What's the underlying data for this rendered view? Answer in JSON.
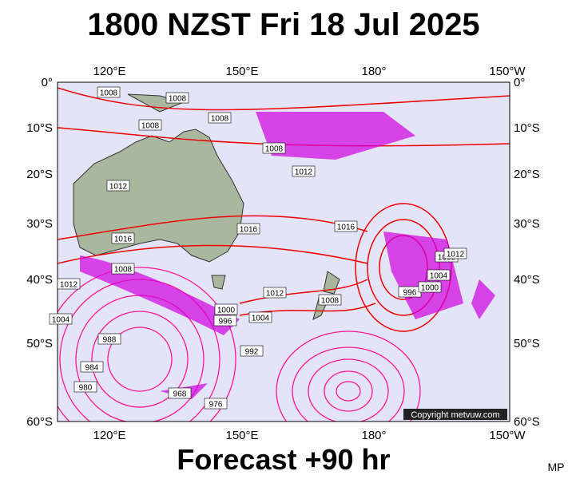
{
  "header": {
    "title": "1800 NZST Fri 18 Jul 2025"
  },
  "map": {
    "lon_labels": [
      "120°E",
      "150°E",
      "180°",
      "150°W"
    ],
    "lat_labels": [
      "0°",
      "10°S",
      "20°S",
      "30°S",
      "40°S",
      "50°S",
      "60°S"
    ],
    "isobar_labels": [
      "1008",
      "1008",
      "1008",
      "1008",
      "1008",
      "1012",
      "1012",
      "1016",
      "1016",
      "1016",
      "1008",
      "1012",
      "1012",
      "1008",
      "1000",
      "996",
      "1004",
      "996",
      "1004",
      "1008",
      "1012",
      "1000",
      "988",
      "984",
      "980",
      "992",
      "968",
      "976",
      "1004"
    ],
    "credit": "Copyright metvuw.com"
  },
  "footer": {
    "caption": "Forecast +90 hr",
    "tag": "MP"
  }
}
